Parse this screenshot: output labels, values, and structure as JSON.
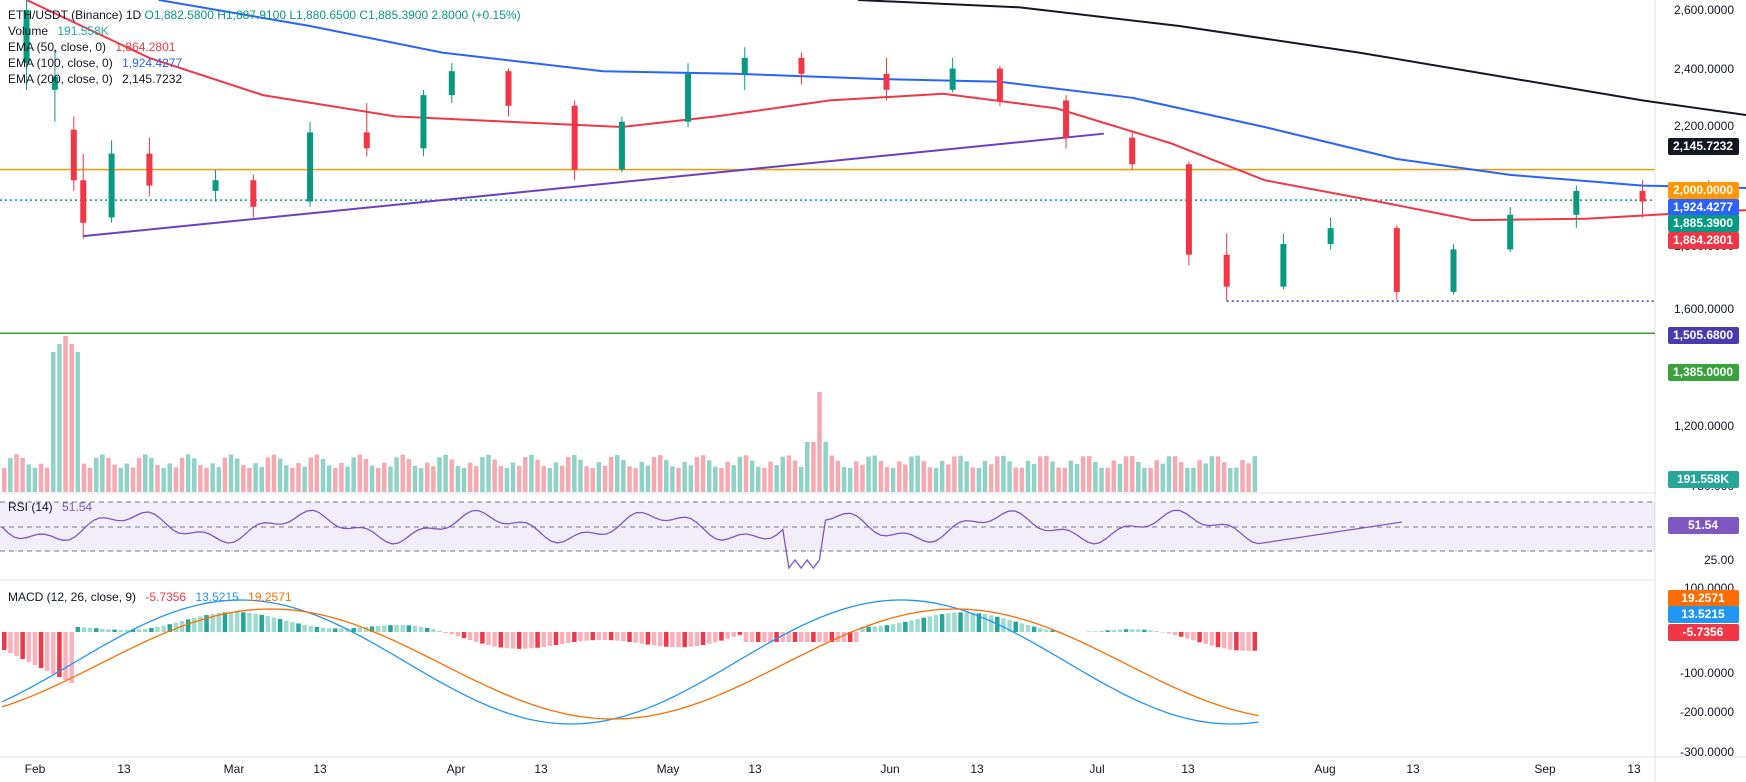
{
  "header": {
    "symbol": "ETH/USDT (Binance)",
    "interval": "1D",
    "ohlc": {
      "open": "O1,882.5800",
      "high": "H1,887.9100",
      "low": "L1,880.6500",
      "close": "C1,885.3900",
      "change": "2.8000 (+0.15%)"
    }
  },
  "legend": {
    "volume": {
      "label": "Volume",
      "value": "191.558K",
      "color": "#26a69a"
    },
    "ema50": {
      "label": "EMA (50, close, 0)",
      "value": "1,864.2801",
      "color": "#f23645"
    },
    "ema100": {
      "label": "EMA (100, close, 0)",
      "value": "1,924.4277",
      "color": "#2962ff"
    },
    "ema200": {
      "label": "EMA (200, close, 0)",
      "value": "2,145.7232",
      "color": "#131722"
    },
    "rsi": {
      "label": "RSI (14)",
      "value": "51.54",
      "color": "#7e57c2"
    },
    "macd": {
      "label": "MACD (12, 26, close, 9)",
      "v1": "-5.7356",
      "v2": "13.5215",
      "v3": "19.2571",
      "c1": "#f23645",
      "c2": "#2196f3",
      "c3": "#ff6d00"
    }
  },
  "price_axis": {
    "ticks": [
      "2,600.0000",
      "2,400.0000",
      "2,200.0000",
      "1,600.0000",
      "1,200.0000"
    ],
    "partial_ticks": [
      "1,800.0000",
      "1,400.0000",
      "750.000"
    ]
  },
  "price_tags": [
    {
      "value": 2145.7232,
      "label": "2,145.7232",
      "bg": "#131722",
      "fg": "#ffffff"
    },
    {
      "value": 2000.0,
      "label": "2,000.0000",
      "bg": "#ff9800",
      "fg": "#ffffff"
    },
    {
      "value": 1924.4277,
      "label": "1,924.4277",
      "bg": "#2962ff",
      "fg": "#ffffff"
    },
    {
      "value": 1885.39,
      "label": "1,885.3900",
      "bg": "#089981",
      "fg": "#ffffff"
    },
    {
      "value": 1864.2801,
      "label": "1,864.2801",
      "bg": "#f23645",
      "fg": "#ffffff"
    },
    {
      "value": 1505.68,
      "label": "1,505.6800",
      "bg": "#4a3ab0",
      "fg": "#ffffff"
    },
    {
      "value": 1385.0,
      "label": "1,385.0000",
      "bg": "#3aa23a",
      "fg": "#ffffff"
    }
  ],
  "volume_tag": {
    "label": "191.558K",
    "bg": "#26a69a"
  },
  "rsi_axis": {
    "ticks": [
      "25.00"
    ],
    "tag": "51.54",
    "tag_bg": "#7e57c2"
  },
  "macd_axis": {
    "ticks": [
      "100.0000",
      "-100.0000",
      "-200.0000",
      "-300.0000"
    ],
    "tags": [
      {
        "value": 19.2571,
        "label": "19.2571",
        "bg": "#ff6d00"
      },
      {
        "value": 13.5215,
        "label": "13.5215",
        "bg": "#2196f3"
      },
      {
        "value": -5.7356,
        "label": "-5.7356",
        "bg": "#f23645"
      }
    ]
  },
  "time_axis": {
    "labels": [
      "Feb",
      "13",
      "Mar",
      "13",
      "Apr",
      "13",
      "May",
      "13",
      "Jun",
      "13",
      "Jul",
      "13",
      "Aug",
      "13",
      "Sep",
      "13"
    ]
  },
  "chart_data": {
    "type": "candlestick",
    "symbol": "ETH/USDT",
    "interval": "1D",
    "ylim": [
      1380,
      2640
    ],
    "price_levels": [
      {
        "name": "resistance",
        "value": 2000,
        "color": "#ff9800"
      },
      {
        "name": "support",
        "value": 1385,
        "color": "#3aa23a"
      },
      {
        "name": "low",
        "value": 1505.68,
        "color": "#4a3ab0",
        "style": "dotted"
      },
      {
        "name": "last",
        "value": 1885.39,
        "color": "#089981",
        "style": "dotted"
      }
    ],
    "trendline": {
      "start": {
        "date": "Feb 6",
        "price": 1750
      },
      "end": {
        "date": "May 24",
        "price": 2135
      },
      "color": "#6b3fc4"
    },
    "ema_series": [
      {
        "name": "EMA 50",
        "color": "#f23645",
        "points": [
          [
            "Jan 31",
            2640
          ],
          [
            "Feb 13",
            2420
          ],
          [
            "Feb 25",
            2280
          ],
          [
            "Mar 10",
            2200
          ],
          [
            "Mar 22",
            2180
          ],
          [
            "Apr 3",
            2160
          ],
          [
            "Apr 13",
            2200
          ],
          [
            "Apr 25",
            2260
          ],
          [
            "May 7",
            2285
          ],
          [
            "May 19",
            2230
          ],
          [
            "May 31",
            2100
          ],
          [
            "Jun 10",
            1960
          ],
          [
            "Jun 22",
            1880
          ],
          [
            "Jul 2",
            1810
          ],
          [
            "Jul 14",
            1815
          ],
          [
            "Jul 26",
            1840
          ],
          [
            "Aug 11",
            1864.28
          ]
        ]
      },
      {
        "name": "EMA 100",
        "color": "#2962ff",
        "points": [
          [
            "Feb 14",
            2640
          ],
          [
            "Mar 1",
            2540
          ],
          [
            "Mar 15",
            2440
          ],
          [
            "Apr 1",
            2370
          ],
          [
            "Apr 15",
            2360
          ],
          [
            "May 1",
            2340
          ],
          [
            "May 13",
            2330
          ],
          [
            "May 27",
            2270
          ],
          [
            "Jun 10",
            2160
          ],
          [
            "Jun 24",
            2040
          ],
          [
            "Jul 6",
            1980
          ],
          [
            "Jul 20",
            1940
          ],
          [
            "Aug 1",
            1930
          ],
          [
            "Aug 11",
            1924.43
          ]
        ]
      },
      {
        "name": "EMA 200",
        "color": "#131722",
        "points": [
          [
            "Apr 28",
            2640
          ],
          [
            "May 15",
            2610
          ],
          [
            "Jun 1",
            2540
          ],
          [
            "Jun 20",
            2440
          ],
          [
            "Jul 5",
            2350
          ],
          [
            "Jul 20",
            2260
          ],
          [
            "Aug 1",
            2200
          ],
          [
            "Aug 11",
            2145.72
          ]
        ]
      }
    ],
    "candles": [
      {
        "date": "Jan 31",
        "open": 2400,
        "high": 2660,
        "low": 2300,
        "close": 2600
      },
      {
        "date": "Feb 3",
        "open": 2300,
        "high": 2450,
        "low": 2180,
        "close": 2350
      },
      {
        "date": "Feb 5",
        "open": 2150,
        "high": 2200,
        "low": 1920,
        "close": 1960
      },
      {
        "date": "Feb 6",
        "open": 1960,
        "high": 2060,
        "low": 1740,
        "close": 1800
      },
      {
        "date": "Feb 9",
        "open": 1820,
        "high": 2110,
        "low": 1800,
        "close": 2060
      },
      {
        "date": "Feb 13",
        "open": 2060,
        "high": 2120,
        "low": 1900,
        "close": 1940
      },
      {
        "date": "Feb 20",
        "open": 1920,
        "high": 2000,
        "low": 1880,
        "close": 1960
      },
      {
        "date": "Feb 24",
        "open": 1960,
        "high": 1980,
        "low": 1820,
        "close": 1860
      },
      {
        "date": "Mar 1",
        "open": 1880,
        "high": 2180,
        "low": 1860,
        "close": 2140
      },
      {
        "date": "Mar 7",
        "open": 2140,
        "high": 2250,
        "low": 2050,
        "close": 2080
      },
      {
        "date": "Mar 13",
        "open": 2080,
        "high": 2300,
        "low": 2050,
        "close": 2280
      },
      {
        "date": "Mar 16",
        "open": 2280,
        "high": 2400,
        "low": 2250,
        "close": 2370
      },
      {
        "date": "Mar 22",
        "open": 2370,
        "high": 2380,
        "low": 2200,
        "close": 2240
      },
      {
        "date": "Mar 29",
        "open": 2240,
        "high": 2260,
        "low": 1960,
        "close": 2000
      },
      {
        "date": "Apr 3",
        "open": 2000,
        "high": 2200,
        "low": 1990,
        "close": 2180
      },
      {
        "date": "Apr 10",
        "open": 2180,
        "high": 2400,
        "low": 2160,
        "close": 2360
      },
      {
        "date": "Apr 16",
        "open": 2360,
        "high": 2460,
        "low": 2300,
        "close": 2420
      },
      {
        "date": "Apr 22",
        "open": 2420,
        "high": 2440,
        "low": 2320,
        "close": 2360
      },
      {
        "date": "May 1",
        "open": 2360,
        "high": 2420,
        "low": 2260,
        "close": 2300
      },
      {
        "date": "May 8",
        "open": 2300,
        "high": 2420,
        "low": 2290,
        "close": 2380
      },
      {
        "date": "May 13",
        "open": 2380,
        "high": 2390,
        "low": 2240,
        "close": 2260
      },
      {
        "date": "May 20",
        "open": 2260,
        "high": 2280,
        "low": 2080,
        "close": 2120
      },
      {
        "date": "May 27",
        "open": 2120,
        "high": 2140,
        "low": 2000,
        "close": 2020
      },
      {
        "date": "Jun 2",
        "open": 2020,
        "high": 2030,
        "low": 1640,
        "close": 1680
      },
      {
        "date": "Jun 6",
        "open": 1680,
        "high": 1760,
        "low": 1505,
        "close": 1560
      },
      {
        "date": "Jun 12",
        "open": 1560,
        "high": 1760,
        "low": 1550,
        "close": 1720
      },
      {
        "date": "Jun 17",
        "open": 1720,
        "high": 1820,
        "low": 1700,
        "close": 1780
      },
      {
        "date": "Jun 24",
        "open": 1780,
        "high": 1790,
        "low": 1510,
        "close": 1540
      },
      {
        "date": "Jun 30",
        "open": 1540,
        "high": 1720,
        "low": 1530,
        "close": 1700
      },
      {
        "date": "Jul 6",
        "open": 1700,
        "high": 1860,
        "low": 1690,
        "close": 1830
      },
      {
        "date": "Jul 13",
        "open": 1830,
        "high": 1940,
        "low": 1780,
        "close": 1920
      },
      {
        "date": "Jul 20",
        "open": 1920,
        "high": 1960,
        "low": 1820,
        "close": 1880
      },
      {
        "date": "Jul 27",
        "open": 1880,
        "high": 1960,
        "low": 1860,
        "close": 1930
      },
      {
        "date": "Aug 3",
        "open": 1930,
        "high": 1940,
        "low": 1820,
        "close": 1850
      },
      {
        "date": "Aug 8",
        "open": 1850,
        "high": 1930,
        "low": 1840,
        "close": 1900
      },
      {
        "date": "Aug 11",
        "open": 1882.58,
        "high": 1887.91,
        "low": 1880.65,
        "close": 1885.39
      }
    ],
    "volume_last": "191.558K",
    "rsi": {
      "period": 14,
      "last": 51.54,
      "levels": [
        30,
        50,
        70
      ]
    },
    "macd": {
      "fast": 12,
      "slow": 26,
      "signal": 9,
      "histogram_last": -5.7356,
      "macd_last": 13.5215,
      "signal_last": 19.2571
    }
  }
}
